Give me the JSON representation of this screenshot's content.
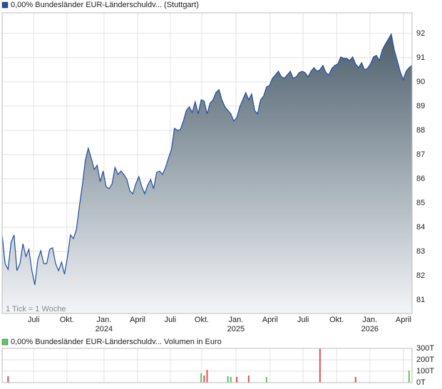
{
  "chart_data": [
    {
      "type": "area",
      "title": "0,00% Bundesländer EUR-Länderschuldv... (Stuttgart)",
      "color": "#1f4fa0",
      "annotation": "1 Tick = 1 Woche",
      "values": [
        83.68,
        82.5,
        82.26,
        83.38,
        83.68,
        82.21,
        82.5,
        83.32,
        82.79,
        83.09,
        82.21,
        81.62,
        82.65,
        83.03,
        82.5,
        82.5,
        83.09,
        83.15,
        82.5,
        82.21,
        82.56,
        82.06,
        82.79,
        83.68,
        83.53,
        83.91,
        84.85,
        85.74,
        86.76,
        87.26,
        86.85,
        86.38,
        86.56,
        85.88,
        86.32,
        85.68,
        85.59,
        85.79,
        86.47,
        86.18,
        86.32,
        86.18,
        85.97,
        85.5,
        85.38,
        85.79,
        86.09,
        85.68,
        85.38,
        85.74,
        85.97,
        85.59,
        86.26,
        86.32,
        86.18,
        86.47,
        86.85,
        87.21,
        88.09,
        88.0,
        88.03,
        88.38,
        88.82,
        88.97,
        88.74,
        89.18,
        88.68,
        89.26,
        89.21,
        88.68,
        89.12,
        89.26,
        89.56,
        89.68,
        89.26,
        88.97,
        88.82,
        88.68,
        88.38,
        88.53,
        88.97,
        89.26,
        89.56,
        89.26,
        89.5,
        88.82,
        88.68,
        89.26,
        89.41,
        89.79,
        89.85,
        90.15,
        90.29,
        90.44,
        90.21,
        90.15,
        90.29,
        90.44,
        90.15,
        90.21,
        90.38,
        90.44,
        90.38,
        90.21,
        90.44,
        90.59,
        90.44,
        90.5,
        90.68,
        90.38,
        90.29,
        90.56,
        90.68,
        90.74,
        91.03,
        90.97,
        90.97,
        90.88,
        91.03,
        90.74,
        90.59,
        90.79,
        90.5,
        90.56,
        90.74,
        91.03,
        91.09,
        90.88,
        91.32,
        91.56,
        91.76,
        91.97,
        91.32,
        90.88,
        90.44,
        90.09,
        90.44,
        90.59,
        90.68
      ],
      "xlim": [
        0,
        138
      ],
      "xticks": [
        {
          "value": 10.6,
          "label": "Juli"
        },
        {
          "value": 21.8,
          "label": "Okt."
        },
        {
          "value": 34.3,
          "label": "Jan."
        },
        {
          "value": 45.6,
          "label": "April"
        },
        {
          "value": 56.6,
          "label": "Juli"
        },
        {
          "value": 67.2,
          "label": "Okt."
        },
        {
          "value": 78.7,
          "label": "Jan."
        },
        {
          "value": 90.2,
          "label": "April"
        },
        {
          "value": 101.3,
          "label": "Juli"
        },
        {
          "value": 112.6,
          "label": "Okt."
        },
        {
          "value": 123.8,
          "label": "Jan."
        },
        {
          "value": 135.1,
          "label": "April"
        }
      ],
      "year_labels": [
        {
          "value": 34.3,
          "label": "2024"
        },
        {
          "value": 78.7,
          "label": "2025"
        },
        {
          "value": 123.8,
          "label": "2026"
        }
      ],
      "ylim": [
        80.44,
        92.85
      ],
      "yticks": [
        81,
        82,
        83,
        84,
        85,
        86,
        87,
        88,
        89,
        90,
        91,
        92
      ],
      "grid": true
    },
    {
      "type": "bar",
      "title": "0,00% Bundesländer EUR-Länderschuldv... Volumen in Euro",
      "color": "#5cc85c",
      "x": [
        2,
        67,
        68,
        69,
        76,
        77,
        79,
        83,
        89,
        107,
        119,
        137
      ],
      "values": [
        56,
        81,
        62,
        112,
        56,
        50,
        50,
        62,
        50,
        300,
        50,
        106
      ],
      "colors": [
        "#e05050",
        "#5cc85c",
        "#e05050",
        "#e05050",
        "#5cc85c",
        "#5cc85c",
        "#e05050",
        "#e05050",
        "#5cc85c",
        "#e05050",
        "#e05050",
        "#5cc85c"
      ],
      "xlim": [
        0,
        138
      ],
      "ylim": [
        0,
        300
      ],
      "yticks": [
        {
          "value": 0,
          "label": "0T"
        },
        {
          "value": 100,
          "label": "100T"
        },
        {
          "value": 200,
          "label": "200T"
        },
        {
          "value": 300,
          "label": "300T"
        }
      ],
      "grid": true
    }
  ]
}
